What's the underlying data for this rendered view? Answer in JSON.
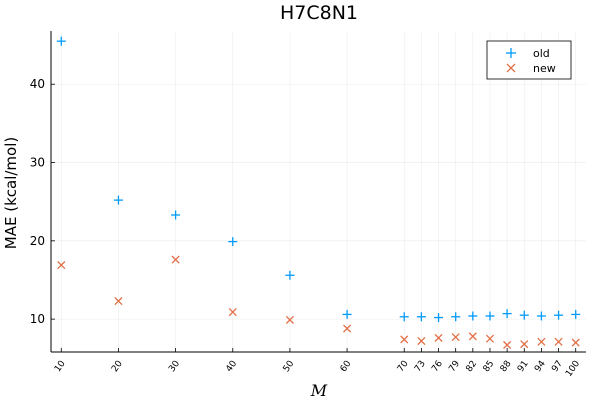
{
  "chart_data": {
    "type": "scatter",
    "title": "H7C8N1",
    "xlabel": "M",
    "ylabel": "MAE (kcal/mol)",
    "x": [
      10,
      20,
      30,
      40,
      50,
      60,
      70,
      73,
      76,
      79,
      82,
      85,
      88,
      91,
      94,
      97,
      100
    ],
    "series": [
      {
        "name": "old",
        "marker": "plus",
        "color": "#009af9",
        "values": [
          45.5,
          25.2,
          23.3,
          19.9,
          15.6,
          10.6,
          10.3,
          10.3,
          10.2,
          10.3,
          10.4,
          10.4,
          10.7,
          10.5,
          10.4,
          10.5,
          10.6
        ]
      },
      {
        "name": "new",
        "marker": "cross",
        "color": "#e26f46",
        "values": [
          16.9,
          12.3,
          17.6,
          10.9,
          9.9,
          8.8,
          7.4,
          7.2,
          7.6,
          7.7,
          7.8,
          7.5,
          6.7,
          6.8,
          7.1,
          7.1,
          7.0
        ]
      }
    ],
    "xlim": [
      8.2,
      101.8
    ],
    "ylim": [
      5.8,
      46.8
    ],
    "yticks": [
      10,
      20,
      30,
      40
    ],
    "xticks": [
      10,
      20,
      30,
      40,
      50,
      60,
      70,
      73,
      76,
      79,
      82,
      85,
      88,
      91,
      94,
      97,
      100
    ],
    "grid": true,
    "legend": "top-right"
  }
}
